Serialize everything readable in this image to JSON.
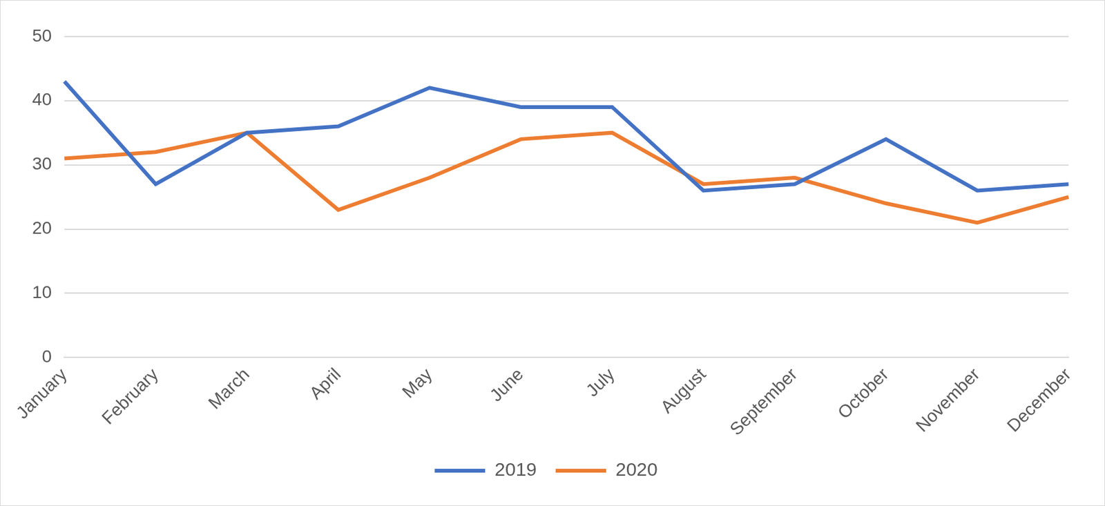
{
  "chart_data": {
    "type": "line",
    "categories": [
      "January",
      "February",
      "March",
      "April",
      "May",
      "June",
      "July",
      "August",
      "September",
      "October",
      "November",
      "December"
    ],
    "series": [
      {
        "name": "2019",
        "color": "#4472c4",
        "values": [
          43,
          27,
          35,
          36,
          42,
          39,
          39,
          26,
          27,
          34,
          26,
          27
        ]
      },
      {
        "name": "2020",
        "color": "#ed7d31",
        "values": [
          31,
          32,
          35,
          23,
          28,
          34,
          35,
          27,
          28,
          24,
          21,
          25
        ]
      }
    ],
    "ylim": [
      0,
      50
    ],
    "yticks": [
      0,
      10,
      20,
      30,
      40,
      50
    ],
    "grid": true,
    "legend": "bottom"
  }
}
